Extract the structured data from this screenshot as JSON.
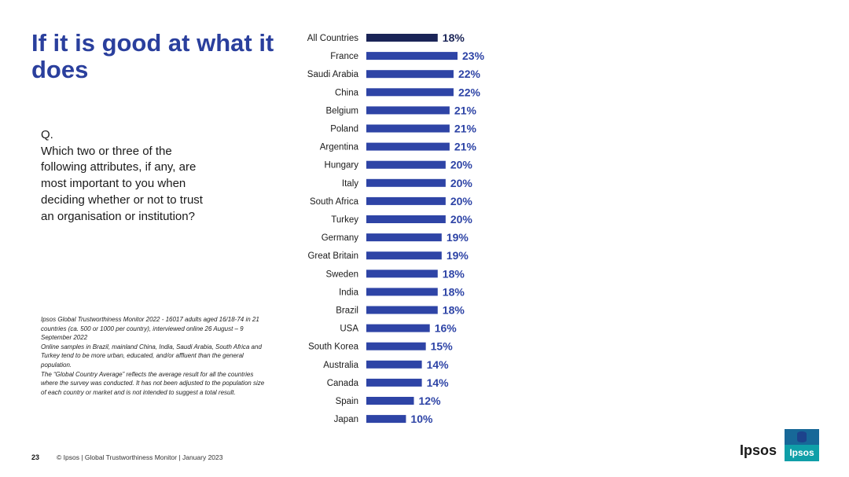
{
  "title": "If it is good at what it does",
  "question": {
    "q": "Q.",
    "text": "Which two or three of the\nfollowing attributes, if any, are\nmost important to you when\ndeciding whether or not to trust\nan organisation or institution?"
  },
  "notes": [
    "Ipsos Global Trustworthiness Monitor 2022 - 16017 adults aged 16/18-74 in 21 countries (ca. 500 or 1000 per country), interviewed online 26 August – 9 September 2022",
    "Online samples in Brazil, mainland China, India, Saudi Arabia, South Africa and Turkey tend to be more urban, educated, and/or affluent than the general population.",
    "The “Global Country Average” reflects the average result for all the countries where the survey was conducted. It has not been adjusted to the population size of each country or market and is not intended to suggest a total result."
  ],
  "footer": {
    "page_number": "23",
    "text": "© Ipsos | Global Trustworthiness Monitor | January 2023"
  },
  "brand": {
    "wordmark": "Ipsos",
    "logo_text": "Ipsos"
  },
  "colors": {
    "title": "#2a3f9d",
    "bar": "#2e44a6",
    "bar_highlight": "#1a2457",
    "value_label": "#2e44a6",
    "value_highlight": "#1a2457",
    "logo_teal": "#0f9fa8"
  },
  "chart_data": {
    "type": "bar",
    "orientation": "horizontal",
    "categories": [
      "All Countries",
      "France",
      "Saudi Arabia",
      "China",
      "Belgium",
      "Poland",
      "Argentina",
      "Hungary",
      "Italy",
      "South Africa",
      "Turkey",
      "Germany",
      "Great Britain",
      "Sweden",
      "India",
      "Brazil",
      "USA",
      "South Korea",
      "Australia",
      "Canada",
      "Spain",
      "Japan"
    ],
    "values": [
      18,
      23,
      22,
      22,
      21,
      21,
      21,
      20,
      20,
      20,
      20,
      19,
      19,
      18,
      18,
      18,
      16,
      15,
      14,
      14,
      12,
      10
    ],
    "value_labels": [
      "18%",
      "23%",
      "22%",
      "22%",
      "21%",
      "21%",
      "21%",
      "20%",
      "20%",
      "20%",
      "20%",
      "19%",
      "19%",
      "18%",
      "18%",
      "18%",
      "16%",
      "15%",
      "14%",
      "14%",
      "12%",
      "10%"
    ],
    "highlight_index": 0,
    "unit": "%",
    "xlim": [
      0,
      23
    ],
    "grid": false,
    "legend": "none"
  }
}
